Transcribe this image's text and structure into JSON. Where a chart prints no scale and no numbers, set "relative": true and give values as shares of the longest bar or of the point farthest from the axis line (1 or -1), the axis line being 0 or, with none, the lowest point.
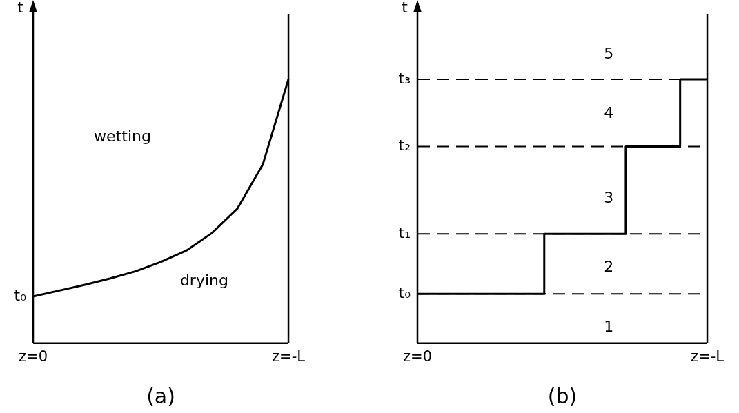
{
  "chart_data": [
    {
      "type": "line",
      "xlabel": "(a)",
      "ylabel": "t",
      "relative": true,
      "grid": false,
      "categories": [
        "z=0",
        null,
        null,
        null,
        null,
        null,
        null,
        null,
        null,
        null,
        "z=-L"
      ],
      "series": [
        {
          "color": "#000000",
          "values": [
            0.177,
            0.199,
            0.221,
            0.245,
            0.272,
            0.308,
            0.351,
            0.417,
            0.51,
            0.678,
            1
          ]
        }
      ],
      "annotations": [
        {
          "text": "t₀",
          "x": "z=0",
          "y": 0.177
        },
        "wetting",
        "drying"
      ]
    },
    {
      "type": "step",
      "xlabel": "(b)",
      "ylabel": "t",
      "relative": true,
      "grid": false,
      "categories": [
        "z=0",
        null,
        null,
        null,
        null,
        null,
        null,
        null,
        null,
        null,
        null,
        null,
        null,
        null,
        null,
        null,
        null,
        null,
        null,
        null,
        null,
        null,
        null,
        null,
        null,
        null,
        null,
        null,
        null,
        null,
        null,
        null,
        "z=-L"
      ],
      "series": [
        {
          "color": "#000000",
          "values": [
            0.187,
            0.187,
            0.187,
            0.187,
            0.187,
            0.187,
            0.187,
            0.187,
            0.187,
            0.187,
            0.187,
            0.187,
            0.187,
            0.187,
            0.187,
            0.414,
            0.414,
            0.414,
            0.414,
            0.414,
            0.414,
            0.414,
            0.414,
            0.414,
            0.745,
            0.745,
            0.745,
            0.745,
            0.745,
            0.745,
            1,
            1,
            1
          ]
        }
      ],
      "ref_lines": [
        {
          "axis": "y",
          "value": 0.187,
          "label": "t₀",
          "line_style": "dashed"
        },
        {
          "axis": "y",
          "value": 0.414,
          "label": "t₁",
          "line_style": "dashed"
        },
        {
          "axis": "y",
          "value": 0.745,
          "label": "t₂",
          "line_style": "dashed"
        },
        {
          "axis": "y",
          "value": 1,
          "label": "t₃",
          "line_style": "dashed"
        }
      ],
      "annotations": [
        "5",
        "4",
        "3",
        "2",
        "1"
      ]
    }
  ]
}
